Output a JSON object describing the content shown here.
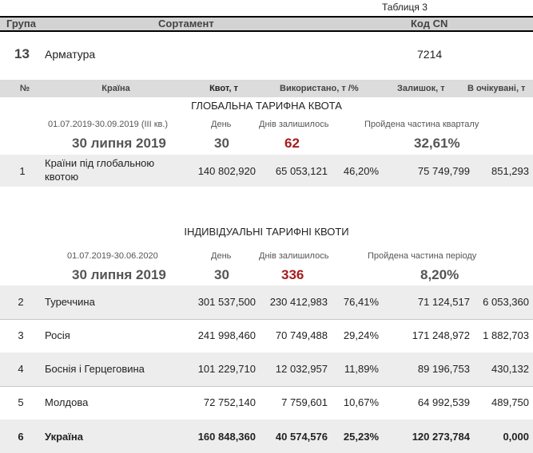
{
  "table_label": "Таблиця 3",
  "header": {
    "group": "Група",
    "assortment": "Сортамент",
    "code": "Код CN"
  },
  "product": {
    "group": "13",
    "name": "Арматура",
    "code": "7214"
  },
  "columns": {
    "num": "№",
    "country": "Країна",
    "quota": "Квот, т",
    "used": "Використано, т /%",
    "remaining": "Залишок, т",
    "pending": "В очікувані, т"
  },
  "global": {
    "title": "ГЛОБАЛЬНА ТАРИФНА КВОТА",
    "period": "01.07.2019-30.09.2019  (III кв.)",
    "day_label": "День",
    "days_left_label": "Днів залишилось",
    "passed_label": "Пройдена частина кварталу",
    "date": "30 липня 2019",
    "day": "30",
    "days_left": "62",
    "passed": "32,61%",
    "rows": [
      {
        "num": "1",
        "country_line1": "Країни під глобальною",
        "country_line2": "квотою",
        "quota": "140 802,920",
        "used": "65 053,121",
        "pct": "46,20%",
        "remaining": "75 749,799",
        "pending": "851,293"
      }
    ]
  },
  "individual": {
    "title": "ІНДИВІДУАЛЬНІ ТАРИФНІ КВОТИ",
    "period": "01.07.2019-30.06.2020",
    "day_label": "День",
    "days_left_label": "Днів залишилось",
    "passed_label": "Пройдена частина періоду",
    "date": "30 липня 2019",
    "day": "30",
    "days_left": "336",
    "passed": "8,20%",
    "rows": [
      {
        "num": "2",
        "country": "Туреччина",
        "quota": "301 537,500",
        "used": "230 412,983",
        "pct": "76,41%",
        "remaining": "71 124,517",
        "pending": "6 053,360"
      },
      {
        "num": "3",
        "country": "Росія",
        "quota": "241 998,460",
        "used": "70 749,488",
        "pct": "29,24%",
        "remaining": "171 248,972",
        "pending": "1 882,703"
      },
      {
        "num": "4",
        "country": "Боснія і Герцеговина",
        "quota": "101 229,710",
        "used": "12 032,957",
        "pct": "11,89%",
        "remaining": "89 196,753",
        "pending": "430,132"
      },
      {
        "num": "5",
        "country": "Молдова",
        "quota": "72 752,140",
        "used": "7 759,601",
        "pct": "10,67%",
        "remaining": "64 992,539",
        "pending": "489,750"
      },
      {
        "num": "6",
        "country": "Україна",
        "quota": "160 848,360",
        "used": "40 574,576",
        "pct": "25,23%",
        "remaining": "120 273,784",
        "pending": "0,000"
      }
    ]
  }
}
